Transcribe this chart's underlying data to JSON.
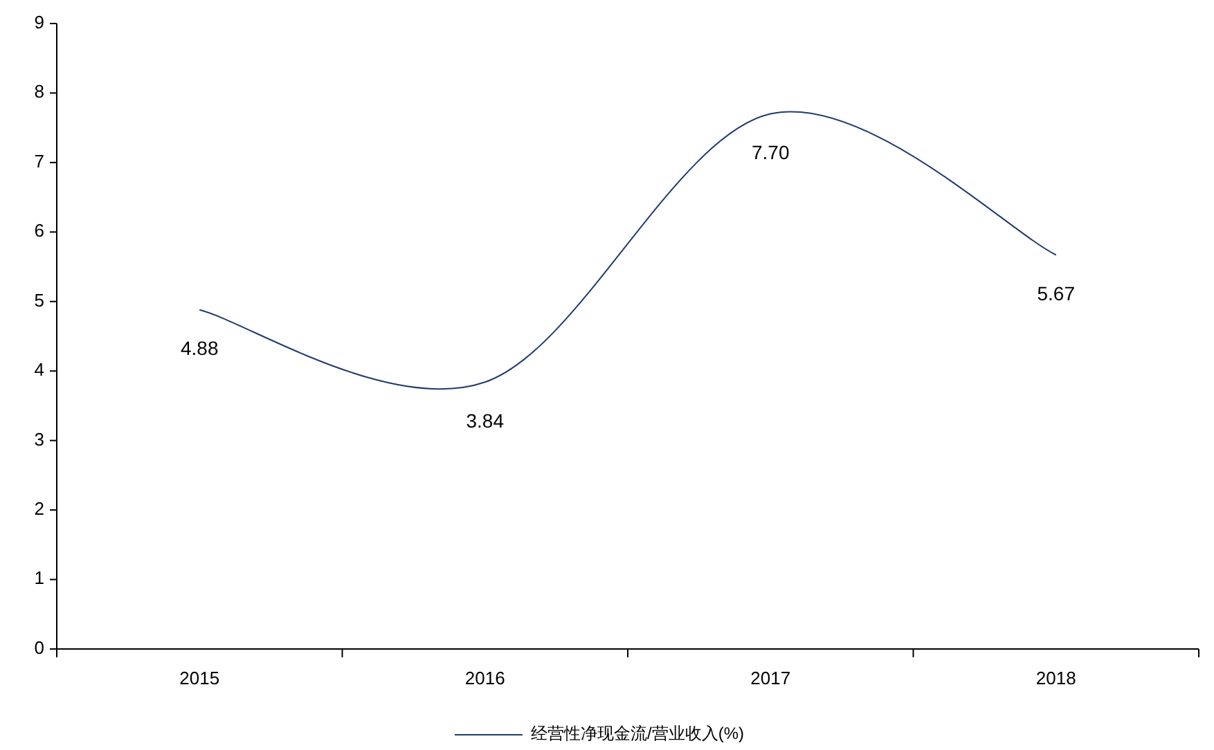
{
  "chart_data": {
    "type": "line",
    "categories": [
      "2015",
      "2016",
      "2017",
      "2018"
    ],
    "series": [
      {
        "name": "经营性净现金流/营业收入(%)",
        "color": "#1f3b6e",
        "values": [
          4.88,
          3.84,
          7.7,
          5.67
        ],
        "value_labels": [
          "4.88",
          "3.84",
          "7.70",
          "5.67"
        ]
      }
    ],
    "ylim": [
      0,
      9
    ],
    "yticks": [
      0,
      1,
      2,
      3,
      4,
      5,
      6,
      7,
      8,
      9
    ],
    "legend": "bottom"
  }
}
